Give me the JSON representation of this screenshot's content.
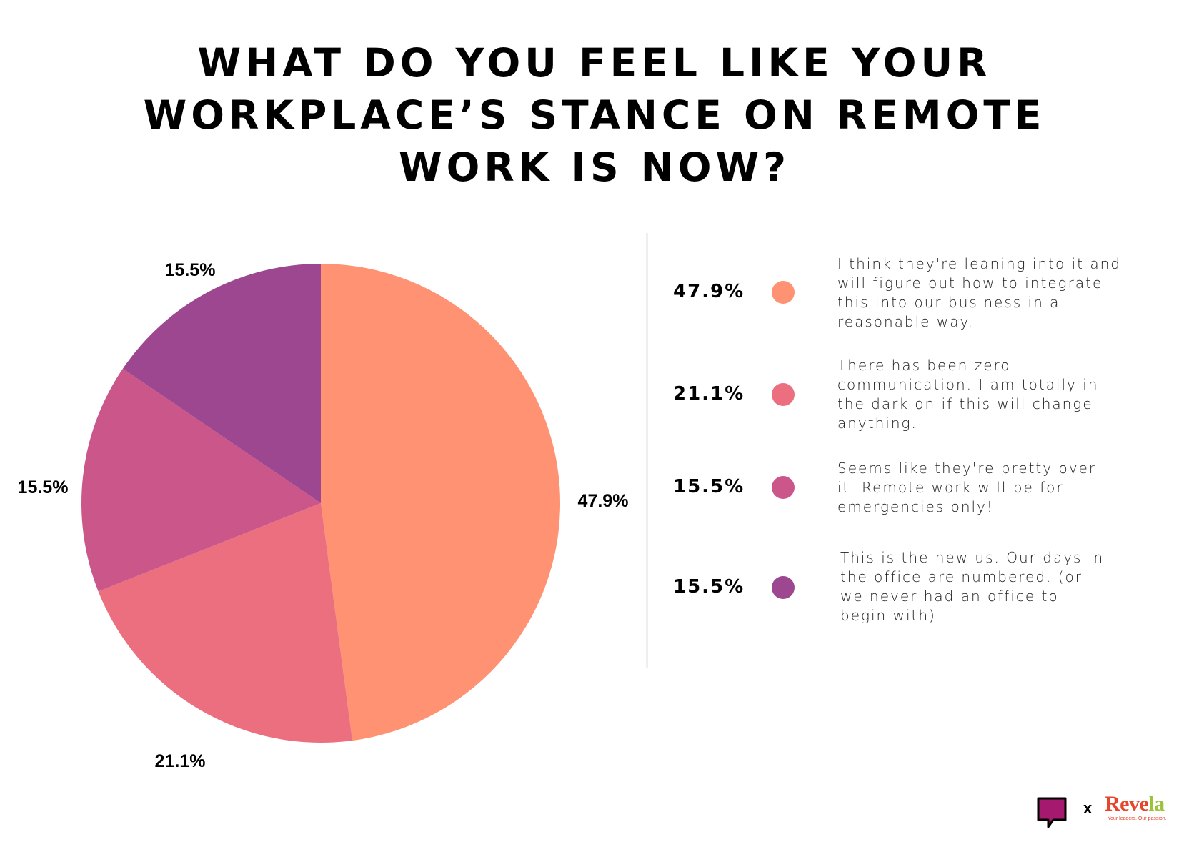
{
  "title_lines": [
    "WHAT DO YOU FEEL LIKE YOUR",
    "WORKPLACE’S STANCE ON REMOTE",
    "WORK IS NOW?"
  ],
  "chart_data": {
    "type": "pie",
    "title": "WHAT DO YOU FEEL LIKE YOUR WORKPLACE’S STANCE ON REMOTE WORK IS NOW?",
    "slices": [
      {
        "label": "I think they're leaning into it and will figure out how to integrate this into our business in a reasonable way.",
        "value": 47.9,
        "display": "47.9%",
        "color": "#FE9272"
      },
      {
        "label": "There has been zero communication. I am totally in the dark on if this will change anything.",
        "value": 21.1,
        "display": "21.1%",
        "color": "#EC6F80"
      },
      {
        "label": "Seems like they're pretty over it. Remote work will be for emergencies only!",
        "value": 15.5,
        "display": "15.5%",
        "color": "#CA568A"
      },
      {
        "label": "This is the new us. Our days in the office are numbered. (or we never had an office to begin with)",
        "value": 15.5,
        "display": "15.5%",
        "color": "#9C4790"
      }
    ],
    "legend_position": "right",
    "start_angle": "12 o'clock, clockwise"
  },
  "legend": [
    {
      "pct": "47.9%",
      "color": "#FE9272",
      "lines": [
        "I think they're leaning into it and",
        "will figure out how to integrate",
        "this into our business in a",
        "reasonable way."
      ]
    },
    {
      "pct": "21.1%",
      "color": "#EC6F80",
      "lines": [
        "There has been zero",
        "communication. I am totally in",
        "the dark on if this will change",
        "anything."
      ]
    },
    {
      "pct": "15.5%",
      "color": "#CA568A",
      "lines": [
        "Seems like they're pretty over",
        "it. Remote work will be for",
        "emergencies only!"
      ]
    },
    {
      "pct": "15.5%",
      "color": "#9C4790",
      "lines": [
        "This is the new us. Our days in",
        "the office are numbered. (or",
        "we never had an office to",
        "begin with)"
      ]
    }
  ],
  "footer": {
    "separator": "x",
    "brand_main": "Reve",
    "brand_accent": "la",
    "tagline": "Your leaders. Our passion."
  },
  "colors": {
    "logo_chat": "#A5196E",
    "brand_red": "#E4452B",
    "brand_green": "#9BC33C"
  }
}
